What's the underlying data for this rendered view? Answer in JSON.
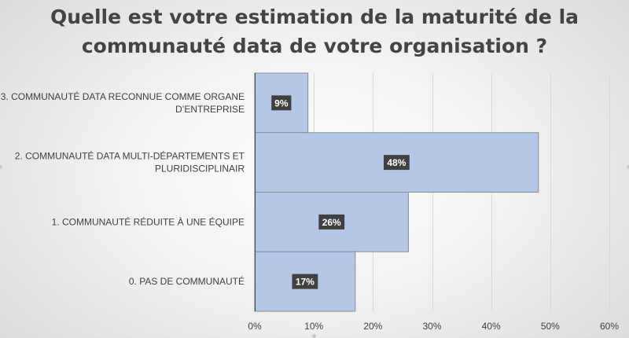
{
  "chart_data": {
    "type": "bar",
    "orientation": "horizontal",
    "title": "Quelle est votre estimation de la maturité de la communauté data de votre organisation ?",
    "title_lines": [
      "Quelle est votre estimation de la maturité de la",
      "communauté data de votre organisation ?"
    ],
    "categories": [
      "3. COMMUNAUTÉ DATA RECONNUE COMME ORGANE D’ENTREPRISE",
      "2. COMMUNAUTÉ DATA MULTI-DÉPARTEMENTS ET PLURIDISCIPLINAIR",
      "1. COMMUNAUTÉ RÉDUITE À UNE ÉQUIPE",
      "0. PAS DE COMMUNAUTÉ"
    ],
    "category_label_lines": [
      [
        "3. COMMUNAUTÉ DATA RECONNUE COMME ORGANE",
        "D’ENTREPRISE"
      ],
      [
        "2. COMMUNAUTÉ DATA MULTI-DÉPARTEMENTS ET",
        "PLURIDISCIPLINAIR"
      ],
      [
        "1. COMMUNAUTÉ RÉDUITE À UNE ÉQUIPE"
      ],
      [
        "0. PAS DE COMMUNAUTÉ"
      ]
    ],
    "values": [
      9,
      48,
      26,
      17
    ],
    "data_labels": [
      "9%",
      "48%",
      "26%",
      "17%"
    ],
    "xlim": [
      0,
      60
    ],
    "x_ticks": [
      0,
      10,
      20,
      30,
      40,
      50,
      60
    ],
    "x_tick_labels": [
      "0%",
      "10%",
      "20%",
      "30%",
      "40%",
      "50%",
      "60%"
    ],
    "grid": true,
    "legend": "none",
    "colors": {
      "bar_fill": "#b4c7e7",
      "bar_stroke": "#8c8c8c",
      "data_label_bg": "#404040",
      "data_label_text": "#ffffff",
      "gridline": "#d9d9d9",
      "axis": "#404040",
      "text": "#404040",
      "title": "#444444"
    }
  }
}
